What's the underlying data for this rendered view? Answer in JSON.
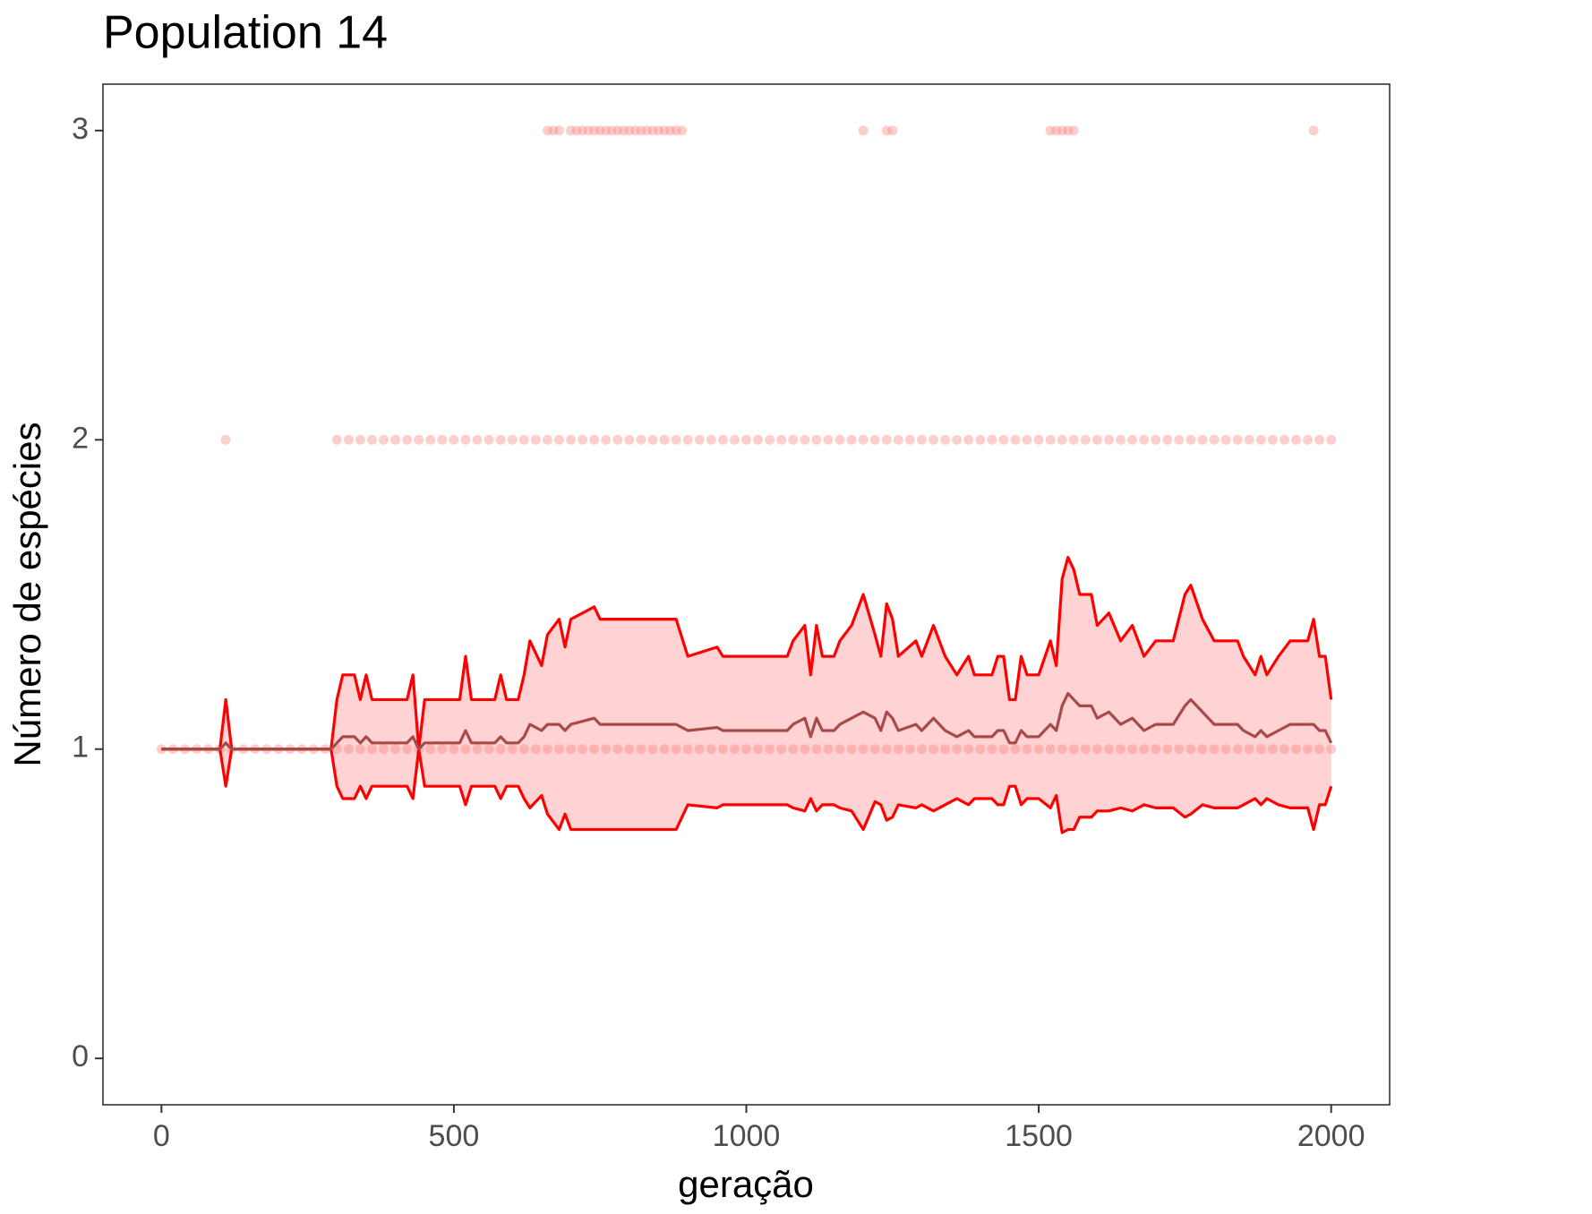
{
  "chart_data": {
    "type": "line",
    "title": "Population 14",
    "x_label": "geração",
    "y_label": "Número de espécies",
    "xlim": [
      -100,
      2100
    ],
    "ylim": [
      -0.15,
      3.15
    ],
    "xticks": [
      0,
      500,
      1000,
      1500,
      2000
    ],
    "yticks": [
      0,
      1,
      2,
      3
    ],
    "band_fill": "#ffd3d3",
    "x": [
      0,
      100,
      110,
      120,
      290,
      300,
      310,
      330,
      340,
      350,
      360,
      420,
      430,
      440,
      450,
      510,
      520,
      530,
      570,
      580,
      590,
      610,
      620,
      630,
      650,
      660,
      680,
      690,
      700,
      740,
      750,
      880,
      900,
      950,
      960,
      1070,
      1080,
      1100,
      1110,
      1120,
      1130,
      1150,
      1160,
      1180,
      1200,
      1220,
      1230,
      1240,
      1250,
      1260,
      1290,
      1300,
      1320,
      1340,
      1360,
      1380,
      1390,
      1420,
      1430,
      1440,
      1450,
      1460,
      1470,
      1480,
      1500,
      1520,
      1530,
      1540,
      1550,
      1560,
      1570,
      1590,
      1600,
      1620,
      1640,
      1660,
      1680,
      1700,
      1730,
      1750,
      1760,
      1780,
      1800,
      1840,
      1850,
      1870,
      1880,
      1890,
      1910,
      1930,
      1960,
      1970,
      1980,
      1990,
      2000
    ],
    "series": [
      {
        "role": "upper",
        "color": "#ff0000",
        "values": [
          1,
          1,
          1.16,
          1,
          1,
          1.16,
          1.24,
          1.24,
          1.16,
          1.24,
          1.16,
          1.16,
          1.24,
          1,
          1.16,
          1.16,
          1.3,
          1.16,
          1.16,
          1.24,
          1.16,
          1.16,
          1.24,
          1.35,
          1.27,
          1.37,
          1.42,
          1.33,
          1.42,
          1.46,
          1.42,
          1.42,
          1.3,
          1.33,
          1.3,
          1.3,
          1.35,
          1.4,
          1.24,
          1.4,
          1.3,
          1.3,
          1.35,
          1.4,
          1.5,
          1.37,
          1.3,
          1.47,
          1.42,
          1.3,
          1.35,
          1.3,
          1.4,
          1.3,
          1.24,
          1.3,
          1.24,
          1.24,
          1.3,
          1.3,
          1.16,
          1.16,
          1.3,
          1.24,
          1.24,
          1.35,
          1.27,
          1.55,
          1.62,
          1.58,
          1.5,
          1.5,
          1.4,
          1.44,
          1.35,
          1.4,
          1.3,
          1.35,
          1.35,
          1.5,
          1.53,
          1.42,
          1.35,
          1.35,
          1.3,
          1.24,
          1.3,
          1.24,
          1.3,
          1.35,
          1.35,
          1.42,
          1.3,
          1.3,
          1.16
        ]
      },
      {
        "role": "lower",
        "color": "#ff0000",
        "values": [
          1,
          1,
          0.88,
          1,
          1,
          0.88,
          0.84,
          0.84,
          0.88,
          0.84,
          0.88,
          0.88,
          0.84,
          1,
          0.88,
          0.88,
          0.82,
          0.88,
          0.88,
          0.84,
          0.88,
          0.88,
          0.84,
          0.81,
          0.85,
          0.79,
          0.74,
          0.79,
          0.74,
          0.74,
          0.74,
          0.74,
          0.82,
          0.81,
          0.82,
          0.82,
          0.81,
          0.8,
          0.84,
          0.8,
          0.82,
          0.82,
          0.81,
          0.8,
          0.74,
          0.83,
          0.82,
          0.77,
          0.78,
          0.82,
          0.81,
          0.82,
          0.8,
          0.82,
          0.84,
          0.82,
          0.84,
          0.84,
          0.82,
          0.82,
          0.88,
          0.88,
          0.82,
          0.84,
          0.84,
          0.81,
          0.85,
          0.73,
          0.74,
          0.74,
          0.78,
          0.78,
          0.8,
          0.8,
          0.81,
          0.8,
          0.82,
          0.81,
          0.81,
          0.78,
          0.79,
          0.82,
          0.81,
          0.81,
          0.82,
          0.84,
          0.82,
          0.84,
          0.82,
          0.81,
          0.81,
          0.74,
          0.82,
          0.82,
          0.88
        ]
      },
      {
        "role": "mean",
        "color": "#a84a4a",
        "values": [
          1,
          1,
          1.02,
          1,
          1,
          1.02,
          1.04,
          1.04,
          1.02,
          1.04,
          1.02,
          1.02,
          1.04,
          1,
          1.02,
          1.02,
          1.06,
          1.02,
          1.02,
          1.04,
          1.02,
          1.02,
          1.04,
          1.08,
          1.06,
          1.08,
          1.08,
          1.06,
          1.08,
          1.1,
          1.08,
          1.08,
          1.06,
          1.07,
          1.06,
          1.06,
          1.08,
          1.1,
          1.04,
          1.1,
          1.06,
          1.06,
          1.08,
          1.1,
          1.12,
          1.1,
          1.06,
          1.12,
          1.1,
          1.06,
          1.08,
          1.06,
          1.1,
          1.06,
          1.04,
          1.06,
          1.04,
          1.04,
          1.06,
          1.06,
          1.02,
          1.02,
          1.06,
          1.04,
          1.04,
          1.08,
          1.06,
          1.14,
          1.18,
          1.16,
          1.14,
          1.14,
          1.1,
          1.12,
          1.08,
          1.1,
          1.06,
          1.08,
          1.08,
          1.14,
          1.16,
          1.12,
          1.08,
          1.08,
          1.06,
          1.04,
          1.06,
          1.04,
          1.06,
          1.08,
          1.08,
          1.08,
          1.06,
          1.06,
          1.02
        ]
      }
    ],
    "points": {
      "color": "#f8766d",
      "opacity": 0.35,
      "groups": [
        {
          "y": 1,
          "x": [
            0,
            20,
            40,
            60,
            80,
            100,
            120,
            140,
            160,
            180,
            200,
            220,
            240,
            260,
            280,
            300,
            320,
            340,
            360,
            380,
            400,
            420,
            440,
            460,
            480,
            500,
            520,
            540,
            560,
            580,
            600,
            620,
            640,
            660,
            680,
            700,
            720,
            740,
            760,
            780,
            800,
            820,
            840,
            860,
            880,
            900,
            920,
            940,
            960,
            980,
            1000,
            1020,
            1040,
            1060,
            1080,
            1100,
            1120,
            1140,
            1160,
            1180,
            1200,
            1220,
            1240,
            1260,
            1280,
            1300,
            1320,
            1340,
            1360,
            1380,
            1400,
            1420,
            1440,
            1460,
            1480,
            1500,
            1520,
            1540,
            1560,
            1580,
            1600,
            1620,
            1640,
            1660,
            1680,
            1700,
            1720,
            1740,
            1760,
            1780,
            1800,
            1820,
            1840,
            1860,
            1880,
            1900,
            1920,
            1940,
            1960,
            1980,
            2000
          ]
        },
        {
          "y": 2,
          "x": [
            110,
            300,
            320,
            340,
            360,
            380,
            400,
            420,
            440,
            460,
            480,
            500,
            520,
            540,
            560,
            580,
            600,
            620,
            640,
            660,
            680,
            700,
            720,
            740,
            760,
            780,
            800,
            820,
            840,
            860,
            880,
            900,
            920,
            940,
            960,
            980,
            1000,
            1020,
            1040,
            1060,
            1080,
            1100,
            1120,
            1140,
            1160,
            1180,
            1200,
            1220,
            1240,
            1260,
            1280,
            1300,
            1320,
            1340,
            1360,
            1380,
            1400,
            1420,
            1440,
            1460,
            1480,
            1500,
            1520,
            1540,
            1560,
            1580,
            1600,
            1620,
            1640,
            1660,
            1680,
            1700,
            1720,
            1740,
            1760,
            1780,
            1800,
            1820,
            1840,
            1860,
            1880,
            1900,
            1920,
            1940,
            1960,
            1980,
            2000
          ]
        },
        {
          "y": 3,
          "x": [
            660,
            670,
            680,
            700,
            710,
            720,
            730,
            740,
            750,
            760,
            770,
            780,
            790,
            800,
            810,
            820,
            830,
            840,
            850,
            860,
            870,
            880,
            890,
            1200,
            1240,
            1250,
            1520,
            1530,
            1540,
            1550,
            1560,
            1970
          ]
        }
      ]
    }
  }
}
